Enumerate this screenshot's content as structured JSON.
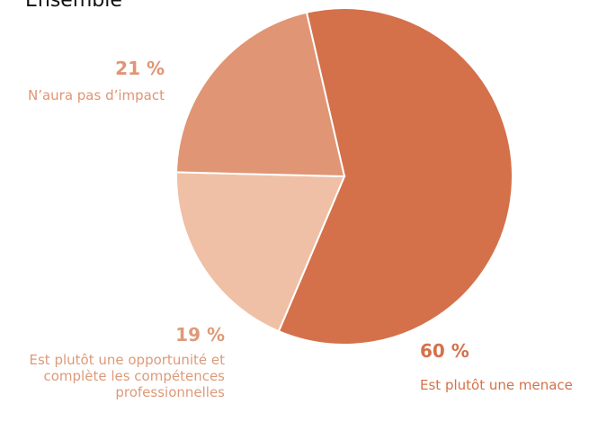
{
  "chart_data": {
    "type": "pie",
    "title": "Ensemble",
    "categories": [
      "Est plutôt une menace",
      "Est plutôt une opportunité et complète les compétences professionnelles",
      "N’aura pas d’impact"
    ],
    "values": [
      60,
      19,
      21
    ],
    "value_labels": [
      "60 %",
      "19 %",
      "21 %"
    ],
    "colors": [
      "#d4714a",
      "#efc0a6",
      "#e09574"
    ],
    "label_colors": [
      "#d4714a",
      "#dd9a78",
      "#e09574"
    ]
  }
}
